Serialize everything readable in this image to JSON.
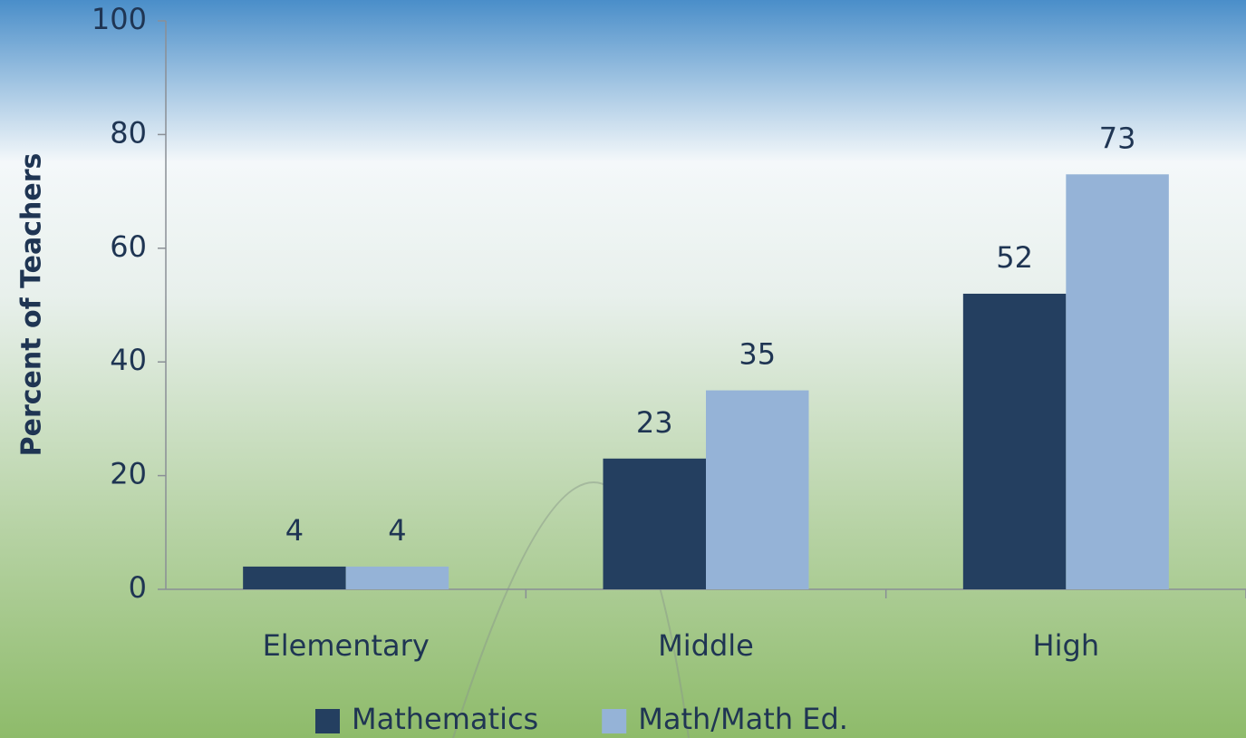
{
  "chart_data": {
    "type": "bar",
    "y_label": "Percent of Teachers",
    "categories": [
      "Elementary",
      "Middle",
      "High"
    ],
    "series": [
      {
        "name": "Mathematics",
        "color": "#243f60",
        "values": [
          4,
          23,
          52
        ]
      },
      {
        "name": "Math/Math Ed.",
        "color": "#95b3d7",
        "values": [
          4,
          35,
          73
        ]
      }
    ],
    "ylim": [
      0,
      100
    ],
    "yticks": [
      0,
      20,
      40,
      60,
      80,
      100
    ],
    "grid": false,
    "legend": "bottom"
  }
}
